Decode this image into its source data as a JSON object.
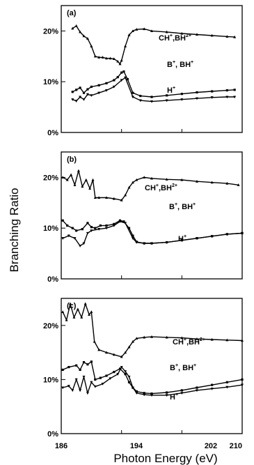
{
  "figure": {
    "ylabel": "Branching Ratio",
    "xlabel": "Photon Energy (eV)",
    "x_tick_labels": [
      "186",
      "194",
      "202",
      "210"
    ]
  },
  "chart_data": [
    {
      "type": "line",
      "panel_label": "(a)",
      "xlim": [
        186,
        210
      ],
      "ylim": [
        0,
        25
      ],
      "y_ticks": [
        0,
        10,
        20
      ],
      "y_tick_labels": [
        "0%",
        "10%",
        "20%"
      ],
      "series": [
        {
          "name": "CH+,BH2+",
          "x": [
            187.5,
            188.0,
            188.5,
            189.0,
            189.5,
            190.0,
            190.5,
            191.0,
            191.5,
            192.0,
            192.5,
            193.0,
            193.5,
            193.8,
            194.0,
            194.5,
            195.0,
            195.5,
            196.0,
            197.0,
            198.0,
            200.0,
            202.0,
            204.0,
            206.0,
            208.0,
            209.0
          ],
          "y": [
            20.5,
            21.0,
            19.8,
            19.0,
            18.5,
            17.0,
            15.0,
            14.8,
            14.8,
            14.6,
            14.6,
            14.5,
            14.0,
            13.5,
            14.2,
            17.0,
            19.2,
            20.0,
            20.3,
            20.4,
            20.0,
            19.8,
            19.5,
            19.3,
            19.1,
            18.9,
            18.8
          ]
        },
        {
          "name": "B+, BH+",
          "x": [
            187.5,
            188.0,
            188.5,
            189.0,
            189.5,
            190.0,
            191.0,
            192.0,
            193.0,
            193.5,
            194.0,
            194.3,
            194.8,
            195.5,
            196.5,
            198.0,
            200.0,
            202.0,
            204.0,
            206.0,
            208.0,
            209.0
          ],
          "y": [
            8.0,
            8.4,
            8.8,
            7.8,
            8.5,
            9.0,
            9.3,
            9.7,
            10.3,
            10.9,
            11.8,
            12.0,
            10.5,
            7.8,
            7.2,
            7.0,
            7.3,
            7.6,
            7.9,
            8.1,
            8.3,
            8.4
          ]
        },
        {
          "name": "H+",
          "x": [
            187.5,
            188.0,
            188.5,
            189.0,
            189.5,
            190.0,
            191.0,
            192.0,
            193.0,
            194.0,
            194.5,
            195.5,
            196.5,
            198.0,
            200.0,
            202.0,
            204.0,
            206.0,
            208.0,
            209.0
          ],
          "y": [
            6.5,
            6.2,
            7.0,
            6.5,
            7.5,
            7.3,
            7.8,
            8.3,
            9.0,
            10.3,
            10.8,
            7.0,
            6.3,
            6.1,
            6.3,
            6.5,
            6.7,
            6.9,
            7.0,
            7.0
          ]
        }
      ]
    },
    {
      "type": "line",
      "panel_label": "(b)",
      "xlim": [
        186,
        210
      ],
      "ylim": [
        0,
        25
      ],
      "y_ticks": [
        0,
        10,
        20
      ],
      "y_tick_labels": [
        "0%",
        "10%",
        "20%"
      ],
      "series": [
        {
          "name": "CH+,BH2+",
          "x": [
            186.2,
            186.8,
            187.3,
            187.8,
            188.3,
            188.8,
            189.3,
            189.8,
            190.2,
            190.5,
            191.0,
            192.0,
            193.0,
            194.0,
            194.5,
            195.0,
            195.5,
            196.0,
            197.0,
            198.0,
            200.0,
            202.0,
            204.0,
            206.0,
            208.0,
            209.5
          ],
          "y": [
            20.0,
            19.5,
            20.5,
            18.5,
            21.3,
            18.2,
            19.5,
            17.8,
            19.5,
            16.0,
            16.0,
            16.0,
            15.8,
            15.5,
            16.5,
            18.0,
            19.0,
            19.5,
            20.0,
            19.8,
            19.6,
            19.5,
            19.2,
            19.0,
            18.8,
            18.5
          ]
        },
        {
          "name": "B+, BH+",
          "x": [
            186.2,
            186.8,
            187.5,
            188.0,
            188.8,
            189.5,
            190.0,
            190.5,
            191.2,
            192.0,
            193.0,
            193.8,
            194.3,
            195.0,
            195.5,
            196.0,
            197.0,
            198.0,
            200.0,
            202.0,
            204.0,
            206.0,
            208.0,
            210.0
          ],
          "y": [
            11.5,
            10.5,
            10.0,
            9.5,
            9.8,
            11.0,
            10.2,
            10.0,
            10.5,
            10.5,
            10.8,
            11.5,
            11.3,
            10.0,
            8.5,
            7.3,
            7.0,
            7.0,
            7.2,
            7.6,
            8.0,
            8.4,
            8.8,
            9.0
          ]
        },
        {
          "name": "H+",
          "x": [
            186.2,
            187.0,
            187.8,
            188.5,
            189.0,
            189.5,
            190.0,
            191.0,
            192.0,
            193.0,
            193.8,
            194.5,
            195.5,
            196.0,
            197.0,
            198.0,
            200.0,
            202.0,
            204.0,
            206.0,
            208.0,
            210.0
          ],
          "y": [
            8.0,
            8.5,
            8.0,
            6.5,
            7.0,
            9.0,
            9.5,
            9.8,
            10.0,
            10.5,
            11.3,
            11.0,
            8.0,
            7.2,
            7.0,
            7.0,
            7.2,
            7.6,
            8.0,
            8.4,
            8.8,
            9.0
          ]
        }
      ]
    },
    {
      "type": "line",
      "panel_label": "(c)",
      "xlim": [
        186,
        210
      ],
      "ylim": [
        0,
        25
      ],
      "y_ticks": [
        0,
        10,
        20
      ],
      "y_tick_labels": [
        "0%",
        "10%",
        "20%"
      ],
      "series": [
        {
          "name": "CH+,BH2+",
          "x": [
            186.2,
            186.7,
            187.2,
            187.7,
            188.2,
            188.7,
            189.2,
            189.7,
            190.0,
            190.4,
            191.0,
            192.0,
            193.0,
            194.0,
            194.5,
            195.0,
            195.5,
            196.0,
            197.0,
            198.0,
            200.0,
            202.0,
            204.0,
            206.0,
            208.0,
            210.0
          ],
          "y": [
            22.5,
            21.0,
            24.0,
            21.5,
            23.0,
            21.5,
            24.0,
            22.0,
            22.5,
            17.0,
            15.5,
            15.0,
            14.6,
            14.2,
            15.0,
            16.0,
            17.0,
            17.6,
            17.8,
            17.9,
            17.8,
            17.7,
            17.5,
            17.4,
            17.3,
            17.2
          ]
        },
        {
          "name": "B+, BH+",
          "x": [
            186.2,
            187.0,
            188.0,
            188.5,
            189.0,
            189.5,
            190.0,
            190.5,
            191.2,
            192.0,
            193.0,
            193.8,
            194.5,
            195.0,
            195.5,
            196.0,
            197.0,
            198.0,
            200.0,
            202.0,
            204.0,
            206.0,
            208.0,
            210.0
          ],
          "y": [
            11.8,
            12.3,
            12.6,
            11.8,
            13.2,
            12.8,
            13.3,
            10.0,
            10.3,
            10.7,
            11.4,
            12.0,
            11.0,
            9.5,
            8.5,
            7.8,
            7.5,
            7.4,
            7.6,
            8.0,
            8.5,
            9.0,
            9.5,
            10.0
          ]
        },
        {
          "name": "H+",
          "x": [
            186.2,
            187.0,
            187.5,
            188.0,
            188.5,
            189.0,
            189.5,
            190.0,
            190.5,
            191.5,
            192.5,
            193.5,
            194.0,
            194.5,
            195.0,
            195.5,
            196.0,
            197.0,
            198.0,
            200.0,
            202.0,
            204.0,
            206.0,
            208.0,
            210.0
          ],
          "y": [
            8.5,
            8.8,
            8.0,
            10.0,
            8.0,
            10.5,
            7.5,
            9.5,
            8.7,
            9.2,
            10.2,
            11.0,
            12.3,
            11.5,
            10.5,
            8.5,
            7.5,
            7.2,
            7.1,
            7.1,
            7.5,
            8.0,
            8.3,
            8.6,
            9.0
          ]
        }
      ]
    }
  ]
}
